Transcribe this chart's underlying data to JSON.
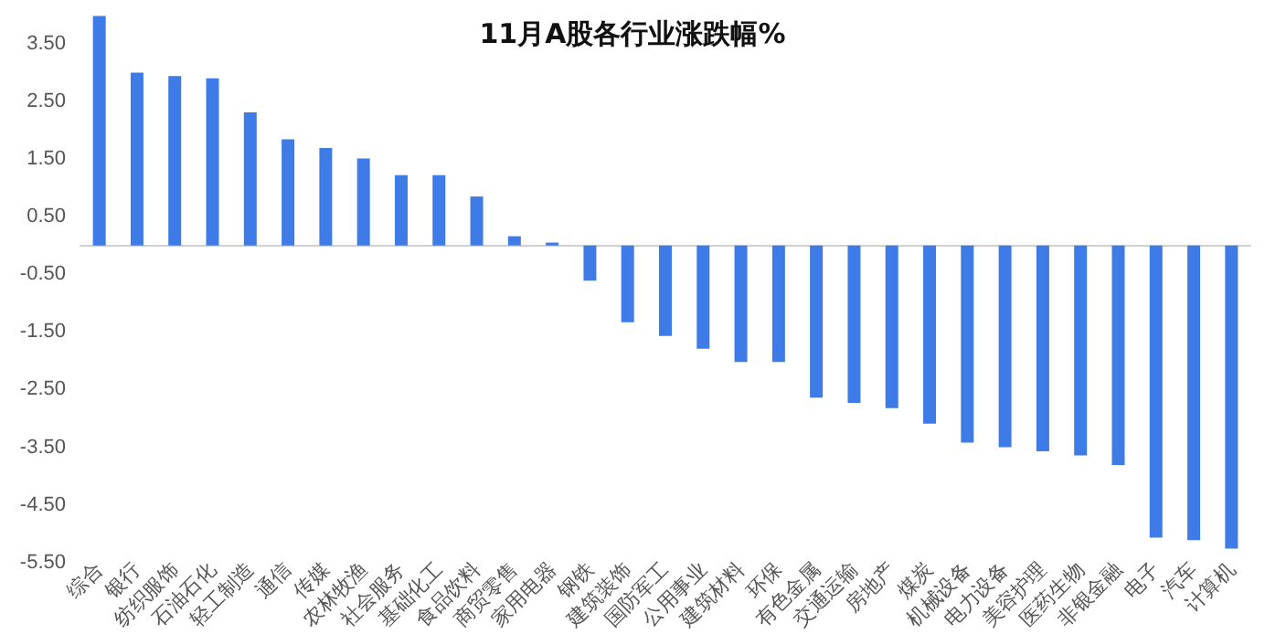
{
  "chart_data": {
    "type": "bar",
    "title": "11月A股各行业涨跌幅%",
    "categories": [
      "综合",
      "银行",
      "纺织服饰",
      "石油石化",
      "轻工制造",
      "通信",
      "传媒",
      "农林牧渔",
      "社会服务",
      "基础化工",
      "食品饮料",
      "商贸零售",
      "家用电器",
      "钢铁",
      "建筑装饰",
      "国防军工",
      "公用事业",
      "建筑材料",
      "环保",
      "有色金属",
      "交通运输",
      "房地产",
      "煤炭",
      "机械设备",
      "电力设备",
      "美容护理",
      "医药生物",
      "非银金融",
      "电子",
      "汽车",
      "计算机"
    ],
    "values": [
      3.98,
      3.0,
      2.94,
      2.9,
      2.31,
      1.84,
      1.69,
      1.51,
      1.22,
      1.22,
      0.85,
      0.16,
      0.05,
      -0.61,
      -1.33,
      -1.57,
      -1.79,
      -2.02,
      -2.02,
      -2.64,
      -2.73,
      -2.82,
      -3.09,
      -3.42,
      -3.5,
      -3.57,
      -3.64,
      -3.81,
      -5.07,
      -5.11,
      -5.26
    ],
    "color": "#3f7be6",
    "ylim": [
      -5.5,
      4.1
    ],
    "yticks": [
      {
        "value": 3.5,
        "label": "3.50"
      },
      {
        "value": 2.5,
        "label": "2.50"
      },
      {
        "value": 1.5,
        "label": "1.50"
      },
      {
        "value": 0.5,
        "label": "0.50"
      },
      {
        "value": -0.5,
        "label": "-0.50"
      },
      {
        "value": -1.5,
        "label": "-1.50"
      },
      {
        "value": -2.5,
        "label": "-2.50"
      },
      {
        "value": -3.5,
        "label": "-3.50"
      },
      {
        "value": -4.5,
        "label": "-4.50"
      },
      {
        "value": -5.5,
        "label": "-5.50"
      }
    ],
    "grid": false
  }
}
